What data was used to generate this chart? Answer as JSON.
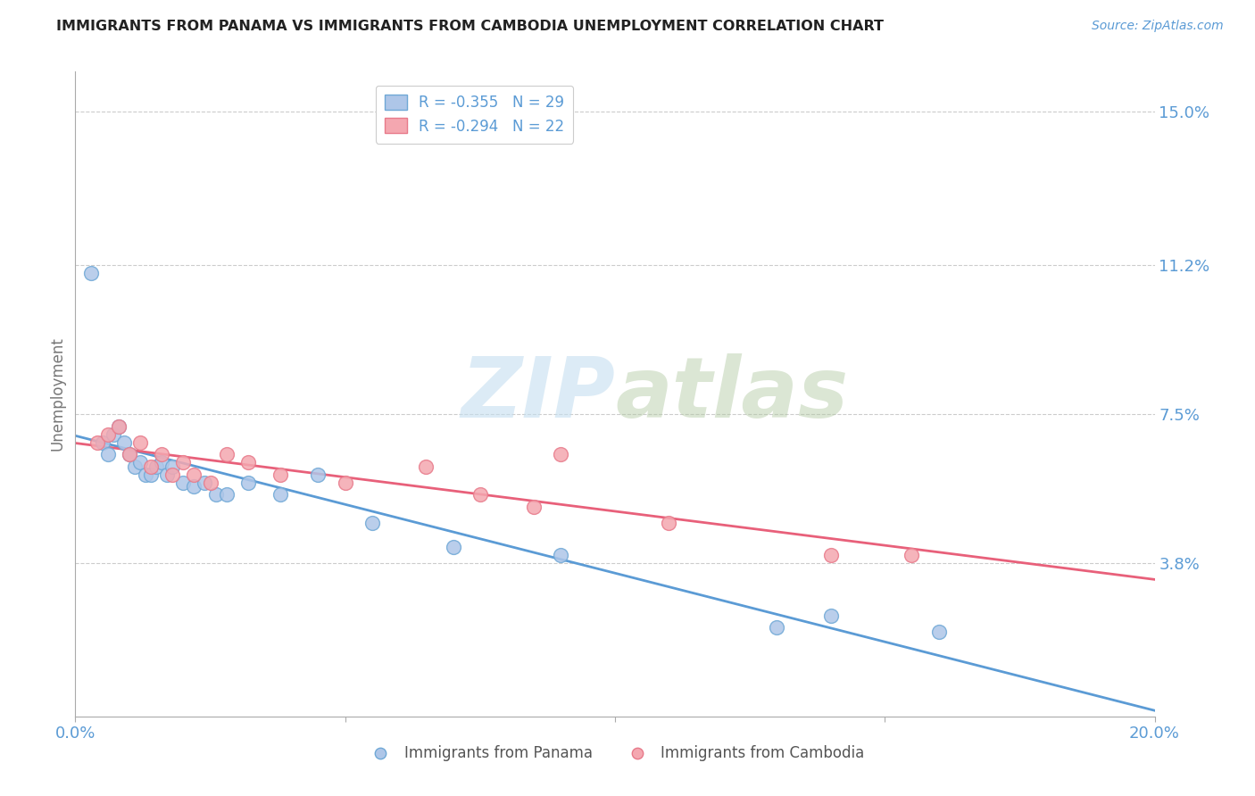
{
  "title": "IMMIGRANTS FROM PANAMA VS IMMIGRANTS FROM CAMBODIA UNEMPLOYMENT CORRELATION CHART",
  "source": "Source: ZipAtlas.com",
  "ylabel": "Unemployment",
  "y_ticks": [
    0.0,
    0.038,
    0.075,
    0.112,
    0.15
  ],
  "y_tick_labels": [
    "",
    "3.8%",
    "7.5%",
    "11.2%",
    "15.0%"
  ],
  "x_range": [
    0.0,
    0.2
  ],
  "y_range": [
    0.0,
    0.16
  ],
  "panama_color": "#aec6e8",
  "panama_edge": "#6fa8d6",
  "cambodia_color": "#f4a7b0",
  "cambodia_edge": "#e87a8a",
  "line_panama_color": "#5b9bd5",
  "line_cambodia_color": "#e8607a",
  "legend_label_1": "R = -0.355   N = 29",
  "legend_label_2": "R = -0.294   N = 22",
  "panama_scatter_x": [
    0.003,
    0.005,
    0.006,
    0.007,
    0.008,
    0.009,
    0.01,
    0.011,
    0.012,
    0.013,
    0.014,
    0.015,
    0.016,
    0.017,
    0.018,
    0.02,
    0.022,
    0.024,
    0.026,
    0.028,
    0.032,
    0.038,
    0.045,
    0.055,
    0.07,
    0.09,
    0.14,
    0.16,
    0.13
  ],
  "panama_scatter_y": [
    0.11,
    0.068,
    0.065,
    0.07,
    0.072,
    0.068,
    0.065,
    0.062,
    0.063,
    0.06,
    0.06,
    0.062,
    0.063,
    0.06,
    0.062,
    0.058,
    0.057,
    0.058,
    0.055,
    0.055,
    0.058,
    0.055,
    0.06,
    0.048,
    0.042,
    0.04,
    0.025,
    0.021,
    0.022
  ],
  "cambodia_scatter_x": [
    0.004,
    0.006,
    0.008,
    0.01,
    0.012,
    0.014,
    0.016,
    0.018,
    0.02,
    0.022,
    0.025,
    0.028,
    0.032,
    0.038,
    0.05,
    0.065,
    0.075,
    0.085,
    0.155,
    0.09,
    0.11,
    0.14
  ],
  "cambodia_scatter_y": [
    0.068,
    0.07,
    0.072,
    0.065,
    0.068,
    0.062,
    0.065,
    0.06,
    0.063,
    0.06,
    0.058,
    0.065,
    0.063,
    0.06,
    0.058,
    0.062,
    0.055,
    0.052,
    0.04,
    0.065,
    0.048,
    0.04
  ],
  "watermark_zip": "ZIP",
  "watermark_atlas": "atlas",
  "background_color": "#ffffff",
  "grid_color": "#cccccc",
  "title_color": "#222222",
  "source_color": "#5b9bd5",
  "tick_color": "#5b9bd5",
  "ylabel_color": "#777777"
}
